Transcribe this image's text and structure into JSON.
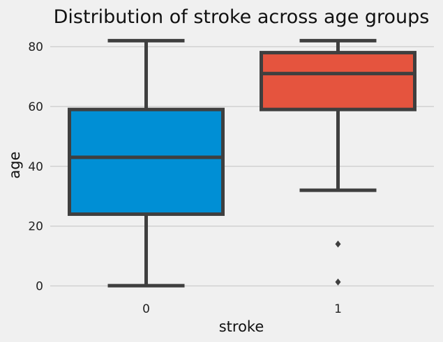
{
  "chart_data": {
    "type": "box",
    "title": "Distribution of stroke across age groups",
    "xlabel": "stroke",
    "ylabel": "age",
    "ylim": [
      -4,
      85
    ],
    "yticks": [
      0,
      20,
      40,
      60,
      80
    ],
    "grid": true,
    "categories": [
      "0",
      "1"
    ],
    "boxes": [
      {
        "category": "0",
        "whisker_low": 0.08,
        "q1": 24,
        "median": 43,
        "q3": 59,
        "whisker_high": 82,
        "outliers": [],
        "color": "#008fd5"
      },
      {
        "category": "1",
        "whisker_low": 32,
        "q1": 59,
        "median": 71,
        "q3": 78,
        "whisker_high": 82,
        "outliers": [
          14,
          1.3
        ],
        "color": "#e5543e"
      }
    ]
  }
}
